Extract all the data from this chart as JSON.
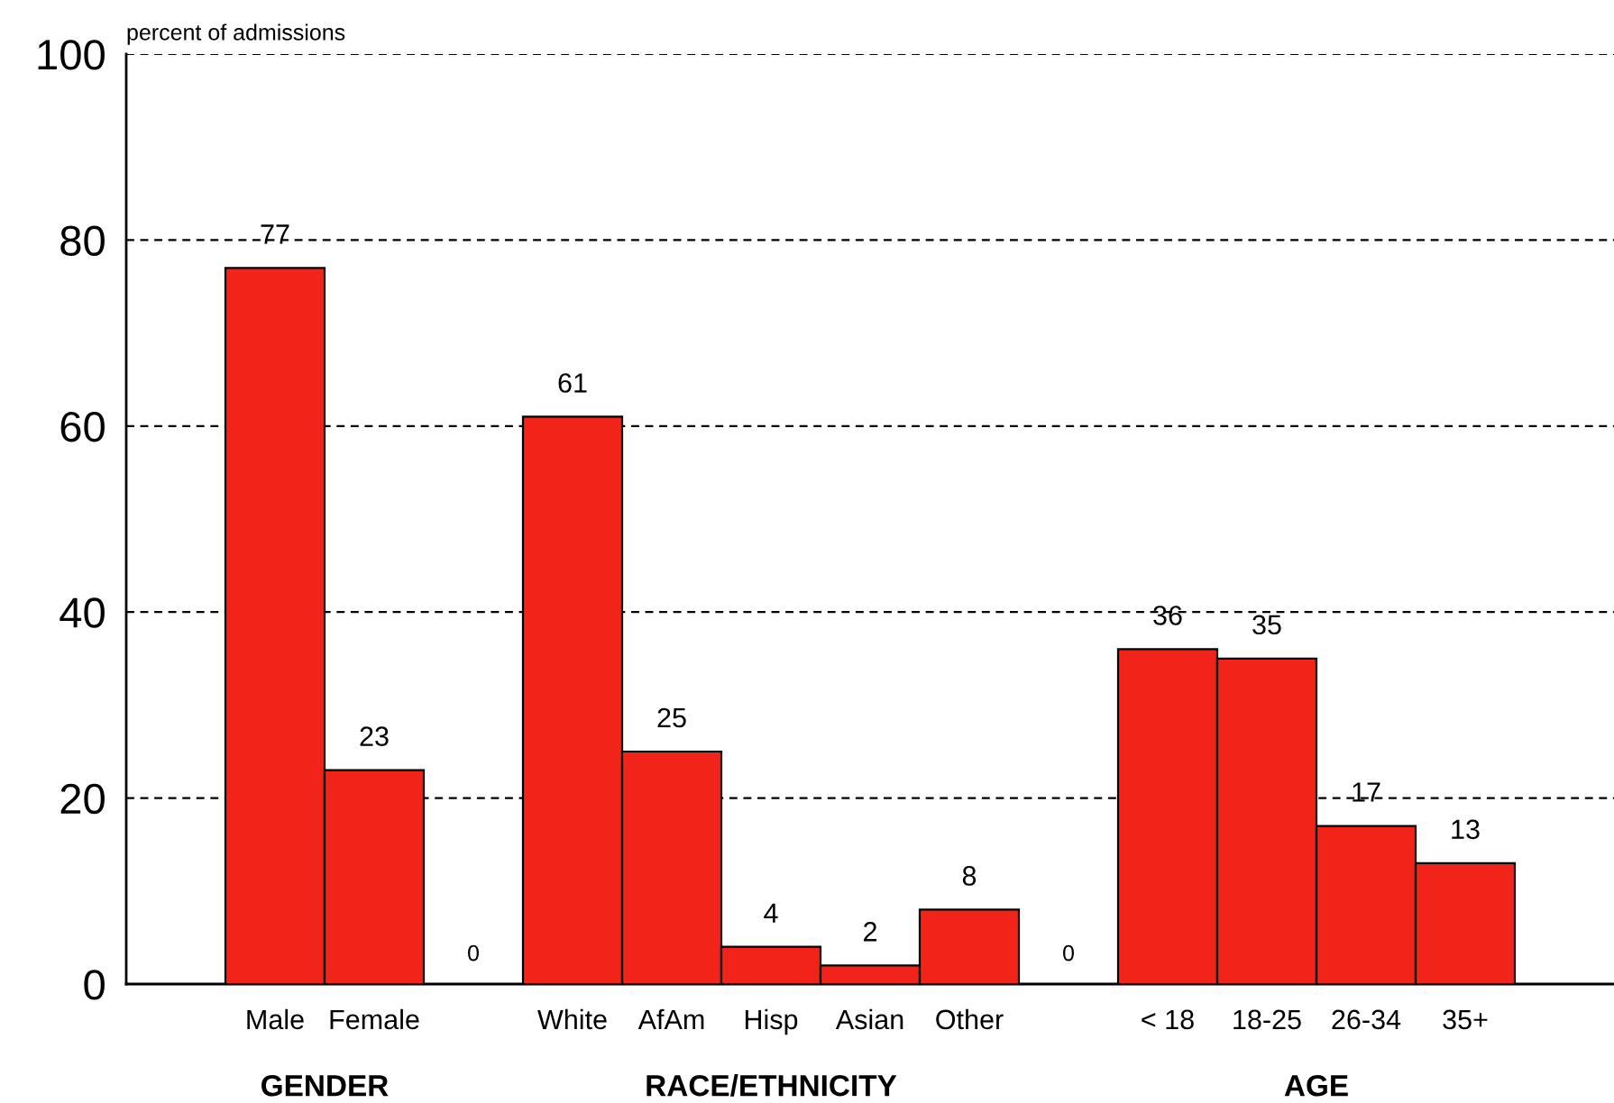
{
  "chart_data": {
    "type": "bar",
    "ylabel": "percent of admissions",
    "categories": [
      "Male",
      "Female",
      null,
      "White",
      "AfAm",
      "Hisp",
      "Asian",
      "Other",
      null,
      "< 18",
      "18-25",
      "26-34",
      "35+"
    ],
    "values": [
      77,
      23,
      0,
      61,
      25,
      4,
      2,
      8,
      0,
      36,
      35,
      17,
      13
    ],
    "color": "#f22318",
    "ylim": [
      0,
      100
    ],
    "yticks": [
      0,
      20,
      40,
      60,
      80,
      100
    ],
    "grid": "y",
    "data_labels": true,
    "annotations": [
      "GENDER",
      "RACE/ETHNICITY",
      "AGE"
    ]
  }
}
